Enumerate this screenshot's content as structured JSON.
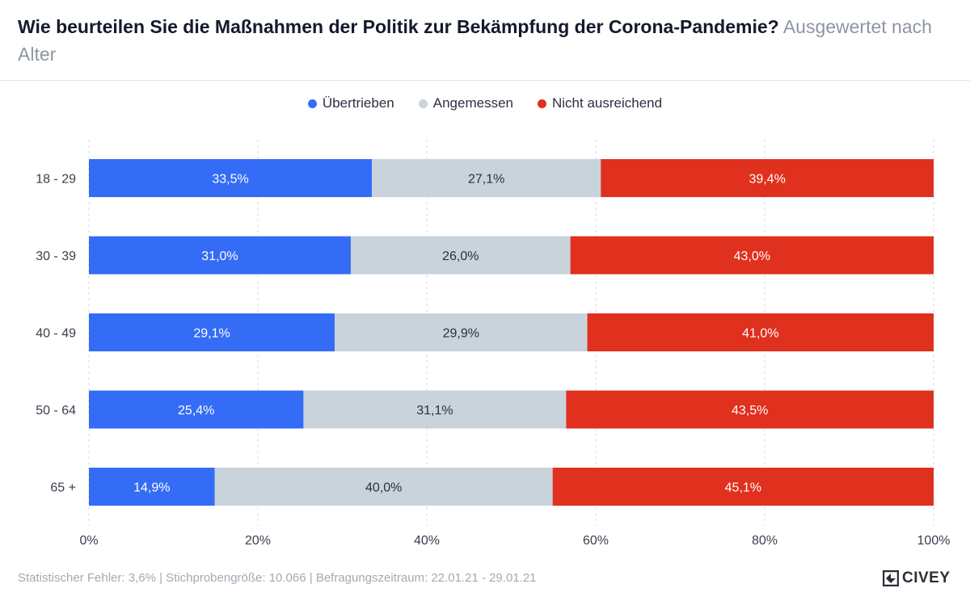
{
  "header": {
    "title": "Wie beurteilen Sie die Maßnahmen der Politik zur Bekämpfung der Corona-Pandemie?",
    "subtitle": "Ausgewertet nach Alter"
  },
  "footer": {
    "note": "Statistischer Fehler: 3,6% | Stichprobengröße: 10.066 | Befragungszeitraum: 22.01.21 - 29.01.21",
    "brand": "CIVEY"
  },
  "chart_data": {
    "type": "bar",
    "orientation": "horizontal",
    "stacked": true,
    "title": "Wie beurteilen Sie die Maßnahmen der Politik zur Bekämpfung der Corona-Pandemie?",
    "subtitle": "Ausgewertet nach Alter",
    "categories": [
      "18 - 29",
      "30 - 39",
      "40 - 49",
      "50 - 64",
      "65 +"
    ],
    "series": [
      {
        "name": "Übertrieben",
        "color": "#346cf6",
        "label_color": "#ffffff",
        "values": [
          33.5,
          31.0,
          29.1,
          25.4,
          14.9
        ],
        "labels": [
          "33,5%",
          "31,0%",
          "29,1%",
          "25,4%",
          "14,9%"
        ]
      },
      {
        "name": "Angemessen",
        "color": "#c8d3dc",
        "label_color": "#2b3040",
        "values": [
          27.1,
          26.0,
          29.9,
          31.1,
          40.0
        ],
        "labels": [
          "27,1%",
          "26,0%",
          "29,9%",
          "31,1%",
          "40,0%"
        ]
      },
      {
        "name": "Nicht ausreichend",
        "color": "#e0301e",
        "label_color": "#ffffff",
        "values": [
          39.4,
          43.0,
          41.0,
          43.5,
          45.1
        ],
        "labels": [
          "39,4%",
          "43,0%",
          "41,0%",
          "43,5%",
          "45,1%"
        ]
      }
    ],
    "xlim": [
      0,
      100
    ],
    "xticks": [
      0,
      20,
      40,
      60,
      80,
      100
    ],
    "xtick_labels": [
      "0%",
      "20%",
      "40%",
      "60%",
      "80%",
      "100%"
    ],
    "grid": true,
    "legend_position": "top-center"
  }
}
